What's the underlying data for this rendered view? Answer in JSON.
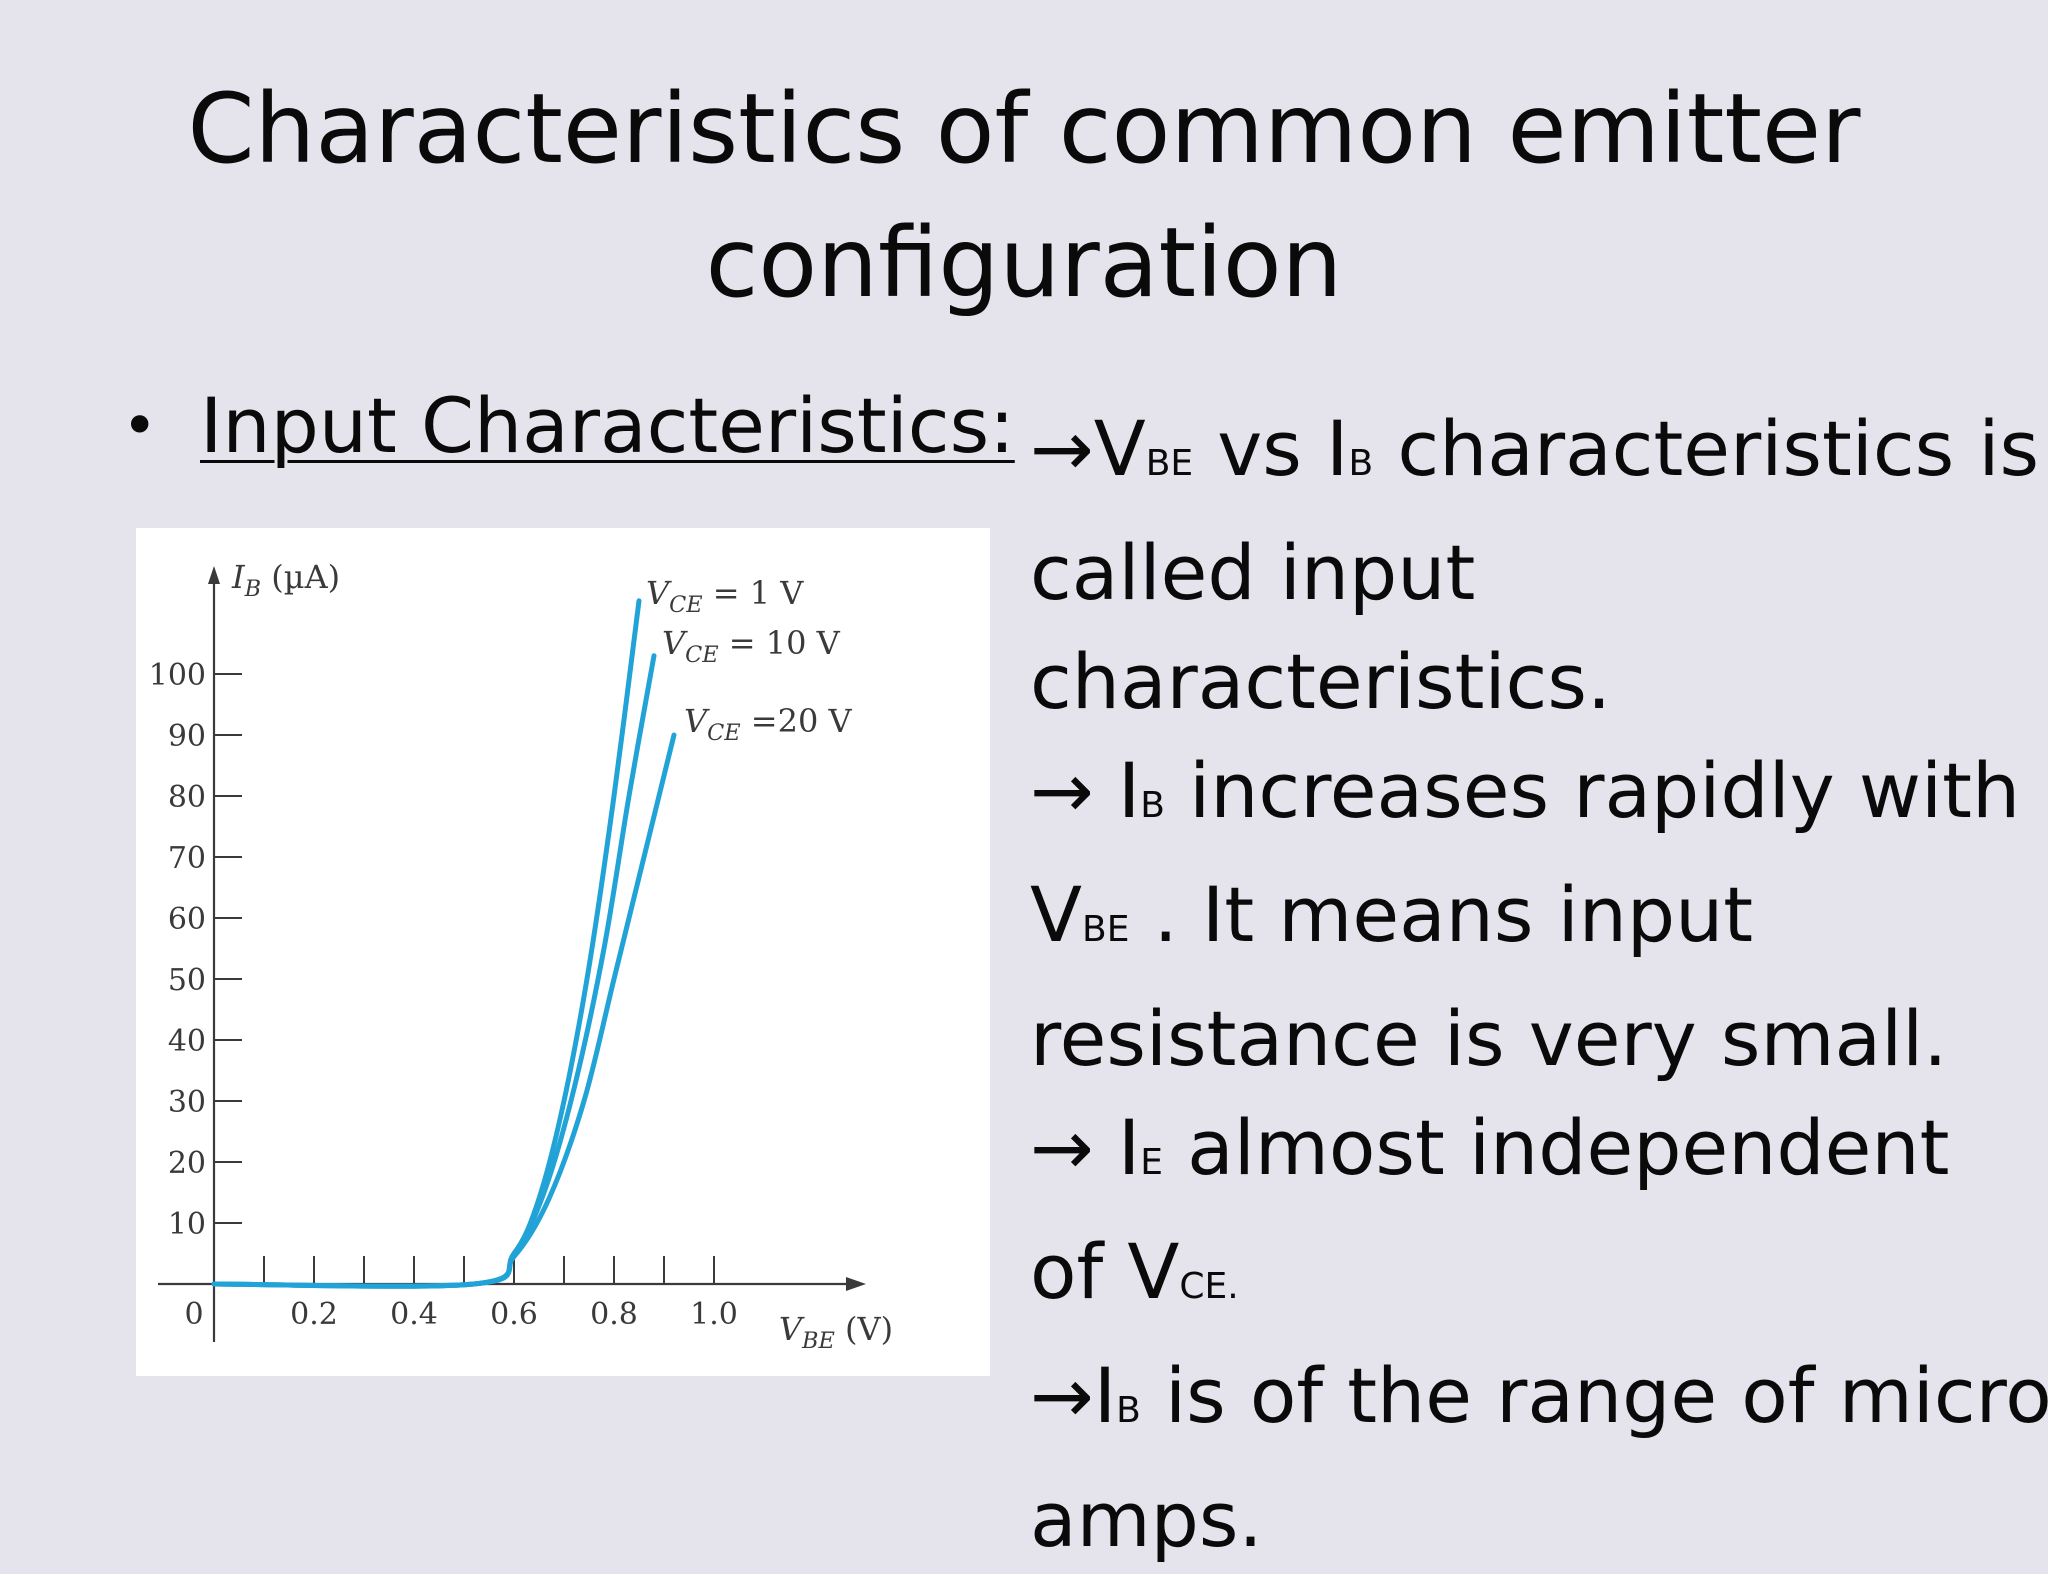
{
  "slide": {
    "title_line1": "Characteristics of common emitter",
    "title_line2": "configuration",
    "bullet_label": "Input Characteristics:"
  },
  "description": {
    "arrow": "→",
    "l1": {
      "a": "V",
      "a_sub": "BE",
      "b": " vs I",
      "b_sub": "B",
      "c": " characteristics is"
    },
    "l2": "called input",
    "l3": "characteristics.",
    "l4": {
      "a": " I",
      "a_sub": "B",
      "b": " increases rapidly with"
    },
    "l5": {
      "a": "V",
      "a_sub": "BE",
      "b": " . It means input"
    },
    "l6": "resistance is very small.",
    "l7": {
      "a": " I",
      "a_sub": "E",
      "b": " almost independent"
    },
    "l8": {
      "a": "of V",
      "a_sub": "CE."
    },
    "l9": {
      "a": "I",
      "a_sub": "B",
      "b": " is of the range of micro"
    },
    "l10": "amps."
  },
  "chart_data": {
    "type": "line",
    "ylabel": {
      "sym": "I",
      "sub": "B",
      "unit": " (µA)"
    },
    "xlabel": {
      "sym": "V",
      "sub": "BE",
      "unit": "  (V)"
    },
    "origin_label": "0",
    "xlim": [
      0,
      1.3
    ],
    "ylim": [
      0,
      110
    ],
    "x_ticks": [
      {
        "v": 0.1,
        "label": ""
      },
      {
        "v": 0.2,
        "label": "0.2"
      },
      {
        "v": 0.3,
        "label": ""
      },
      {
        "v": 0.4,
        "label": "0.4"
      },
      {
        "v": 0.5,
        "label": ""
      },
      {
        "v": 0.6,
        "label": "0.6"
      },
      {
        "v": 0.7,
        "label": ""
      },
      {
        "v": 0.8,
        "label": "0.8"
      },
      {
        "v": 0.9,
        "label": ""
      },
      {
        "v": 1.0,
        "label": "1.0"
      }
    ],
    "y_ticks": [
      {
        "v": 10,
        "label": "10"
      },
      {
        "v": 20,
        "label": "20"
      },
      {
        "v": 30,
        "label": "30"
      },
      {
        "v": 40,
        "label": "40"
      },
      {
        "v": 50,
        "label": "50"
      },
      {
        "v": 60,
        "label": "60"
      },
      {
        "v": 70,
        "label": "70"
      },
      {
        "v": 80,
        "label": "80"
      },
      {
        "v": 90,
        "label": "90"
      },
      {
        "v": 100,
        "label": "100"
      }
    ],
    "curve_color": "#22a3d8",
    "series": [
      {
        "name": {
          "sym": "V",
          "sub": "CE",
          "rest": " = 1 V"
        },
        "x": [
          0.0,
          0.52,
          0.6,
          0.65,
          0.7,
          0.75,
          0.8,
          0.85
        ],
        "y": [
          0,
          0,
          5,
          14,
          30,
          52,
          80,
          112
        ]
      },
      {
        "name": {
          "sym": "V",
          "sub": "CE",
          "rest": " = 10 V"
        },
        "x": [
          0.0,
          0.52,
          0.6,
          0.66,
          0.72,
          0.78,
          0.83,
          0.88
        ],
        "y": [
          0,
          0,
          5,
          15,
          32,
          55,
          80,
          103
        ]
      },
      {
        "name": {
          "sym": "V",
          "sub": "CE",
          "rest": " =20 V"
        },
        "x": [
          0.0,
          0.52,
          0.6,
          0.67,
          0.74,
          0.8,
          0.86,
          0.92
        ],
        "y": [
          0,
          0,
          4.5,
          14,
          30,
          50,
          70,
          90
        ]
      }
    ]
  }
}
